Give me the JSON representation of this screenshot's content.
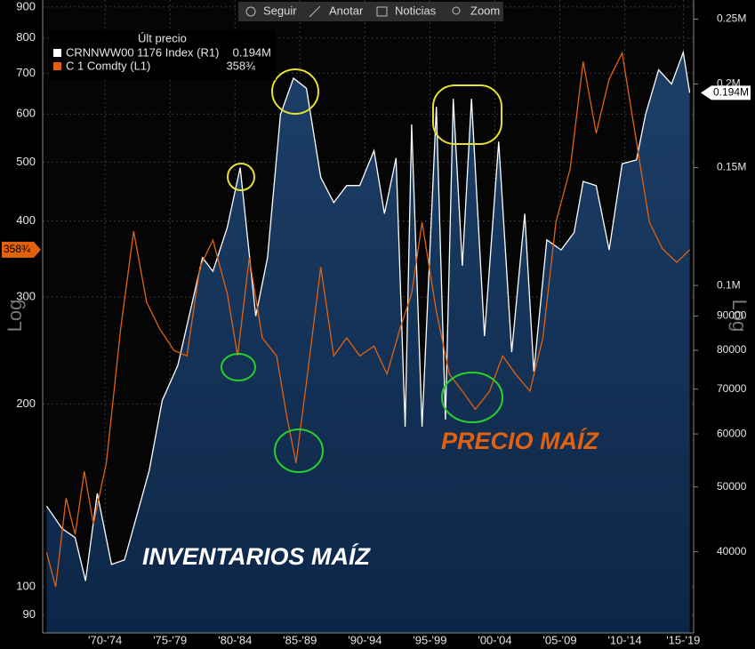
{
  "toolbar": [
    "Seguir",
    "Anotar",
    "Noticias",
    "Zoom"
  ],
  "chart_data": {
    "type": "line",
    "legend_title": "Últ precio",
    "y_label": "Log",
    "y2_label": "Log",
    "annotations": [
      "INVENTARIOS MAÍZ",
      "PRECIO MAÍZ"
    ],
    "xlim": [
      1967.2,
      2017.3
    ],
    "xticks": [
      {
        "value": 1972,
        "label": "'70-'74"
      },
      {
        "value": 1977,
        "label": "'75-'79"
      },
      {
        "value": 1982,
        "label": "'80-'84"
      },
      {
        "value": 1987,
        "label": "'85-'89"
      },
      {
        "value": 1992,
        "label": "'90-'94"
      },
      {
        "value": 1997,
        "label": "'95-'99"
      },
      {
        "value": 2002,
        "label": "'00-'04"
      },
      {
        "value": 2007,
        "label": "'05-'09"
      },
      {
        "value": 2012,
        "label": "'10-'14"
      },
      {
        "value": 2016.5,
        "label": "'15-'19"
      }
    ],
    "ylim": [
      84,
      924
    ],
    "log_y": true,
    "yticks": [
      90,
      100,
      200,
      300,
      400,
      500,
      600,
      700,
      800,
      900
    ],
    "y2lim": [
      30250,
      267000
    ],
    "log_y2": true,
    "y2ticks": [
      40000,
      50000,
      60000,
      70000,
      80000,
      90000,
      {
        "value": 100000,
        "label": "0.1M"
      },
      {
        "value": 150000,
        "label": "0.15M"
      },
      {
        "value": 200000,
        "label": "0.2M"
      },
      {
        "value": 250000,
        "label": "0.25M"
      }
    ],
    "grid": true,
    "series": [
      {
        "name": "CRNNWW00 1176 Index  (R1)",
        "last_label": "0.194M",
        "color": "#ffffff",
        "axis": "y2",
        "area": true,
        "x": [
          1967.5,
          1968.7,
          1969.7,
          1970.5,
          1971.4,
          1972.5,
          1973.5,
          1975.4,
          1976.4,
          1977.6,
          1979.5,
          1980.3,
          1981.4,
          1982.4,
          1983.6,
          1984.5,
          1985.5,
          1986.5,
          1987.5,
          1988.6,
          1989.6,
          1990.6,
          1991.6,
          1992.7,
          1993.5,
          1994.4,
          1995.1,
          1995.6,
          1996.4,
          1997.5,
          1998.2,
          1998.8,
          1999.5,
          2000.2,
          2001.2,
          2002.3,
          2003.3,
          2004.3,
          2005.0,
          2006.0,
          2007.1,
          2008.1,
          2008.8,
          2009.8,
          2010.8,
          2011.8,
          2012.9,
          2013.6,
          2014.6,
          2015.6,
          2016.5,
          2017.0
        ],
        "values": [
          46800,
          43300,
          42000,
          36200,
          48900,
          38300,
          38900,
          52900,
          67300,
          76000,
          110000,
          105000,
          122000,
          150000,
          90000,
          110000,
          180000,
          204000,
          197000,
          145000,
          133000,
          141000,
          141000,
          159000,
          128000,
          155000,
          61500,
          174000,
          61500,
          185000,
          63000,
          190000,
          107000,
          190000,
          84000,
          164000,
          79500,
          128000,
          74400,
          117000,
          113000,
          120000,
          143000,
          141000,
          113000,
          152000,
          154000,
          180000,
          210000,
          200000,
          223000,
          194000
        ]
      },
      {
        "name": "C 1 Comdty  (L1)",
        "last_label": "358¾",
        "color": "#e0620f",
        "axis": "y",
        "x": [
          1967.5,
          1968.2,
          1969.0,
          1969.7,
          1970.4,
          1971.1,
          1972.1,
          1973.2,
          1974.2,
          1975.2,
          1976.2,
          1977.3,
          1978.3,
          1979.3,
          1980.3,
          1981.4,
          1982.2,
          1983.1,
          1984.1,
          1985.2,
          1986.0,
          1986.7,
          1987.5,
          1988.6,
          1989.6,
          1990.6,
          1991.6,
          1992.7,
          1993.7,
          1994.7,
          1995.6,
          1996.4,
          1997.5,
          1998.5,
          1999.5,
          2000.5,
          2001.6,
          2002.6,
          2003.6,
          2004.7,
          2005.7,
          2006.7,
          2007.8,
          2008.8,
          2009.8,
          2010.8,
          2011.8,
          2012.9,
          2013.9,
          2014.9,
          2016.0,
          2017.0
        ],
        "values": [
          114,
          100,
          140,
          122,
          155,
          127,
          160,
          266,
          385,
          294,
          266,
          245,
          240,
          336,
          372,
          304,
          240,
          348,
          257,
          240,
          190,
          160,
          217,
          336,
          240,
          257,
          240,
          249,
          224,
          266,
          304,
          398,
          284,
          224,
          210,
          196,
          210,
          240,
          224,
          210,
          257,
          398,
          488,
          732,
          558,
          685,
          756,
          540,
          398,
          360,
          342,
          358.75
        ]
      }
    ]
  }
}
